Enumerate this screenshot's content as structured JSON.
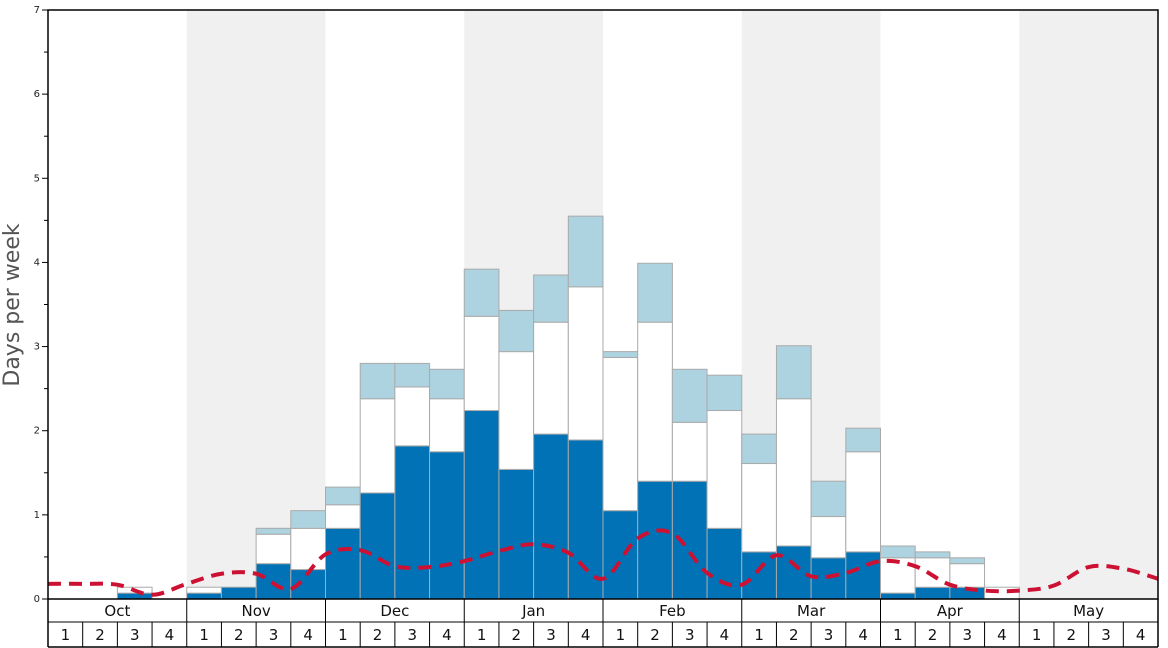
{
  "chart_data": {
    "type": "bar",
    "stacked": true,
    "title": "",
    "xlabel": "",
    "ylabel": "Days per week",
    "ylim": [
      0,
      7
    ],
    "y_ticks": [
      "0",
      "1",
      "2",
      "3",
      "4",
      "5",
      "6",
      "7"
    ],
    "months": [
      "Oct",
      "Nov",
      "Dec",
      "Jan",
      "Feb",
      "Mar",
      "Apr",
      "May"
    ],
    "week_labels": [
      "1",
      "2",
      "3",
      "4"
    ],
    "categories": [
      "Oct 1",
      "Oct 2",
      "Oct 3",
      "Oct 4",
      "Nov 1",
      "Nov 2",
      "Nov 3",
      "Nov 4",
      "Dec 1",
      "Dec 2",
      "Dec 3",
      "Dec 4",
      "Jan 1",
      "Jan 2",
      "Jan 3",
      "Jan 4",
      "Feb 1",
      "Feb 2",
      "Feb 3",
      "Feb 4",
      "Mar 1",
      "Mar 2",
      "Mar 3",
      "Mar 4",
      "Apr 1",
      "Apr 2",
      "Apr 3",
      "Apr 4",
      "May 1",
      "May 2",
      "May 3",
      "May 4"
    ],
    "series": [
      {
        "color": "#0072b5",
        "values": [
          0,
          0,
          0.07,
          0,
          0.07,
          0.14,
          0.42,
          0.35,
          0.84,
          1.26,
          1.82,
          1.75,
          2.24,
          1.54,
          1.96,
          1.89,
          1.05,
          1.4,
          1.4,
          0.84,
          0.56,
          0.63,
          0.49,
          0.56,
          0.07,
          0.14,
          0.14,
          0,
          0,
          0,
          0,
          0
        ]
      },
      {
        "color": "#ffffff",
        "values": [
          0,
          0,
          0.07,
          0,
          0.07,
          0,
          0.35,
          0.49,
          0.28,
          1.12,
          0.7,
          0.63,
          1.12,
          1.4,
          1.33,
          1.82,
          1.82,
          1.89,
          0.7,
          1.4,
          1.05,
          1.75,
          0.49,
          1.19,
          0.42,
          0.35,
          0.28,
          0.14,
          0,
          0,
          0,
          0
        ]
      },
      {
        "color": "#aed3e0",
        "values": [
          0,
          0,
          0,
          0,
          0,
          0,
          0.07,
          0.21,
          0.21,
          0.42,
          0.28,
          0.35,
          0.56,
          0.49,
          0.56,
          0.84,
          0.07,
          0.7,
          0.63,
          0.42,
          0.35,
          0.63,
          0.42,
          0.28,
          0.14,
          0.07,
          0.07,
          0,
          0,
          0,
          0,
          0
        ]
      }
    ],
    "average_line": {
      "color": "#cc1133",
      "style": "dashed",
      "values": [
        0.18,
        0.18,
        0.17,
        0.05,
        0.18,
        0.3,
        0.3,
        0.12,
        0.53,
        0.58,
        0.39,
        0.38,
        0.45,
        0.57,
        0.65,
        0.55,
        0.24,
        0.72,
        0.78,
        0.31,
        0.17,
        0.52,
        0.27,
        0.31,
        0.45,
        0.39,
        0.17,
        0.1,
        0.1,
        0.16,
        0.38,
        0.36,
        0.24
      ]
    },
    "colors": {
      "shade": "#f0f0f0",
      "outline": "#aaaaaa",
      "frame": "#000000"
    }
  }
}
